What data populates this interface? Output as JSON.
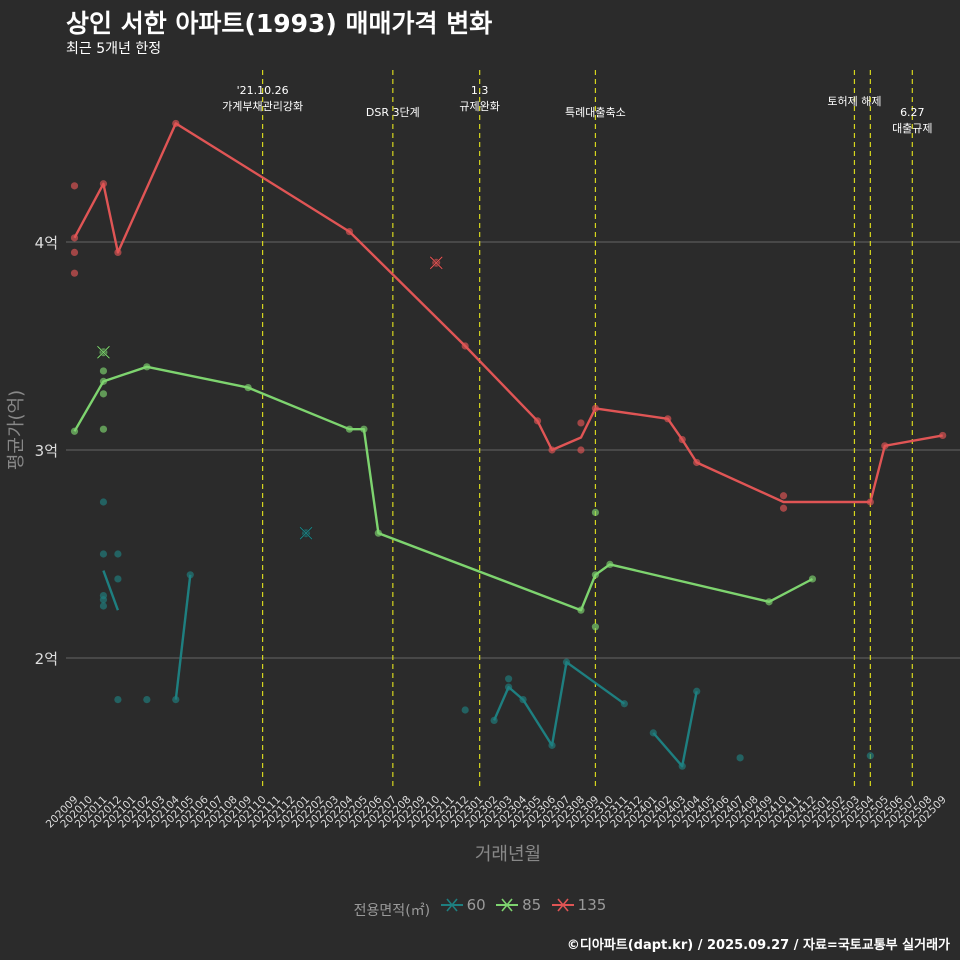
{
  "title": "상인 서한 아파트(1993) 매매가격 변화",
  "subtitle": "최근 5개년 한정",
  "caption": "©디아파트(dapt.kr) / 2025.09.27 / 자료=국토교통부 실거래가",
  "chart_data": {
    "type": "line",
    "xlabel": "거래년월",
    "ylabel": "평균가(억)",
    "ylim": [
      1.35,
      4.85
    ],
    "y_ticks": [
      {
        "value": 2,
        "label": "2억"
      },
      {
        "value": 3,
        "label": "3억"
      },
      {
        "value": 4,
        "label": "4억"
      }
    ],
    "x_start": "2020-09",
    "x_labels": [
      "202009",
      "202010",
      "202011",
      "202012",
      "202101",
      "202102",
      "202103",
      "202104",
      "202105",
      "202106",
      "202107",
      "202108",
      "202109",
      "202110",
      "202111",
      "202112",
      "202201",
      "202202",
      "202203",
      "202204",
      "202205",
      "202206",
      "202207",
      "202208",
      "202209",
      "202210",
      "202211",
      "202212",
      "202301",
      "202302",
      "202303",
      "202304",
      "202305",
      "202306",
      "202307",
      "202308",
      "202309",
      "202310",
      "202311",
      "202312",
      "202401",
      "202402",
      "202403",
      "202404",
      "202405",
      "202406",
      "202407",
      "202408",
      "202409",
      "202410",
      "202411",
      "202412",
      "202501",
      "202502",
      "202503",
      "202504",
      "202505",
      "202506",
      "202507",
      "202508",
      "202509"
    ],
    "legend_title": "전용면적(㎡)",
    "policy_lines": [
      {
        "x": 13,
        "lines": [
          "'21.10.26",
          "가계부채관리강화"
        ],
        "level": 1
      },
      {
        "x": 22,
        "lines": [
          "DSR 3단계"
        ],
        "level": 2
      },
      {
        "x": 28,
        "lines": [
          "1.3",
          "규제완화"
        ],
        "level": 1
      },
      {
        "x": 36,
        "lines": [
          "특례대출축소"
        ],
        "level": 2
      },
      {
        "x": 53.9,
        "lines": [
          "토허제 해제"
        ],
        "level": 1.5
      },
      {
        "x": 55,
        "lines": [],
        "level": 0
      },
      {
        "x": 57.9,
        "lines": [
          "6.27",
          "대출규제"
        ],
        "level": 2
      }
    ],
    "series": [
      {
        "name": "60",
        "color": "#1e7f80",
        "line_segments": [
          [
            [
              2,
              2.42
            ],
            [
              3,
              2.23
            ]
          ],
          [
            [
              7,
              1.8
            ],
            [
              8,
              2.4
            ]
          ],
          [
            [
              29,
              1.7
            ],
            [
              30,
              1.86
            ],
            [
              31,
              1.8
            ],
            [
              33,
              1.58
            ],
            [
              34,
              1.98
            ],
            [
              38,
              1.78
            ]
          ],
          [
            [
              40,
              1.64
            ],
            [
              42,
              1.48
            ],
            [
              43,
              1.84
            ]
          ]
        ],
        "points": [
          [
            2,
            2.75
          ],
          [
            2,
            2.5
          ],
          [
            2,
            2.3
          ],
          [
            2,
            2.28
          ],
          [
            2,
            2.25
          ],
          [
            3,
            2.5
          ],
          [
            3,
            2.38
          ],
          [
            3,
            1.8
          ],
          [
            5,
            1.8
          ],
          [
            7,
            1.8
          ],
          [
            8,
            2.4
          ],
          [
            27,
            1.75
          ],
          [
            29,
            1.7
          ],
          [
            30,
            1.9
          ],
          [
            30,
            1.86
          ],
          [
            31,
            1.8
          ],
          [
            33,
            1.58
          ],
          [
            34,
            1.98
          ],
          [
            38,
            1.78
          ],
          [
            40,
            1.64
          ],
          [
            42,
            1.48
          ],
          [
            43,
            1.84
          ],
          [
            46,
            1.52
          ],
          [
            55,
            1.53
          ]
        ],
        "cancelled": [
          [
            16,
            2.6
          ]
        ]
      },
      {
        "name": "85",
        "color": "#7ed46f",
        "line_segments": [
          [
            [
              0,
              3.09
            ],
            [
              2,
              3.33
            ],
            [
              5,
              3.4
            ],
            [
              12,
              3.3
            ],
            [
              19,
              3.1
            ],
            [
              20,
              3.1
            ],
            [
              21,
              2.6
            ],
            [
              35,
              2.23
            ],
            [
              36,
              2.4
            ],
            [
              37,
              2.45
            ],
            [
              48,
              2.27
            ],
            [
              51,
              2.38
            ]
          ]
        ],
        "points": [
          [
            0,
            3.09
          ],
          [
            2,
            3.38
          ],
          [
            2,
            3.27
          ],
          [
            2,
            3.1
          ],
          [
            2,
            3.33
          ],
          [
            5,
            3.4
          ],
          [
            12,
            3.3
          ],
          [
            19,
            3.1
          ],
          [
            20,
            3.1
          ],
          [
            21,
            2.6
          ],
          [
            35,
            2.23
          ],
          [
            36,
            2.7
          ],
          [
            36,
            2.15
          ],
          [
            36,
            2.4
          ],
          [
            37,
            2.45
          ],
          [
            48,
            2.27
          ],
          [
            51,
            2.38
          ]
        ],
        "cancelled": [
          [
            2,
            3.47
          ]
        ]
      },
      {
        "name": "135",
        "color": "#e05555",
        "line_segments": [
          [
            [
              0,
              4.02
            ],
            [
              2,
              4.28
            ],
            [
              3,
              3.95
            ],
            [
              7,
              4.57
            ],
            [
              19,
              4.05
            ],
            [
              27,
              3.5
            ],
            [
              32,
              3.14
            ],
            [
              33,
              3.0
            ],
            [
              35,
              3.06
            ],
            [
              36,
              3.2
            ],
            [
              41,
              3.15
            ],
            [
              42,
              3.05
            ],
            [
              43,
              2.94
            ],
            [
              49,
              2.75
            ],
            [
              55,
              2.75
            ],
            [
              56,
              3.02
            ],
            [
              60,
              3.07
            ]
          ]
        ],
        "points": [
          [
            0,
            4.27
          ],
          [
            0,
            4.02
          ],
          [
            0,
            3.95
          ],
          [
            0,
            3.85
          ],
          [
            2,
            4.28
          ],
          [
            3,
            3.95
          ],
          [
            7,
            4.57
          ],
          [
            19,
            4.05
          ],
          [
            27,
            3.5
          ],
          [
            32,
            3.14
          ],
          [
            33,
            3.0
          ],
          [
            35,
            3.13
          ],
          [
            35,
            3.0
          ],
          [
            36,
            3.2
          ],
          [
            41,
            3.15
          ],
          [
            42,
            3.05
          ],
          [
            43,
            2.94
          ],
          [
            49,
            2.78
          ],
          [
            49,
            2.72
          ],
          [
            55,
            2.75
          ],
          [
            56,
            3.02
          ],
          [
            60,
            3.07
          ]
        ],
        "cancelled": [
          [
            25,
            3.9
          ]
        ]
      }
    ]
  }
}
